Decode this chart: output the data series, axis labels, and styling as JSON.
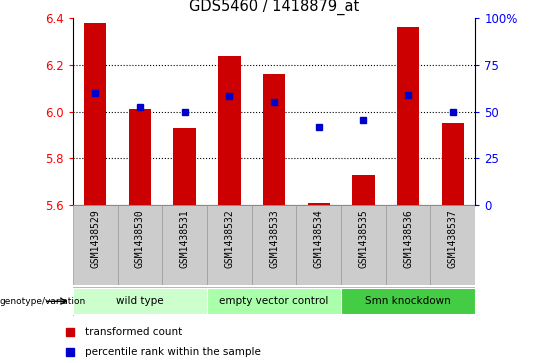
{
  "title": "GDS5460 / 1418879_at",
  "samples": [
    "GSM1438529",
    "GSM1438530",
    "GSM1438531",
    "GSM1438532",
    "GSM1438533",
    "GSM1438534",
    "GSM1438535",
    "GSM1438536",
    "GSM1438537"
  ],
  "red_values": [
    6.38,
    6.01,
    5.93,
    6.24,
    6.16,
    5.61,
    5.73,
    6.36,
    5.95
  ],
  "blue_values": [
    6.08,
    6.02,
    6.0,
    6.065,
    6.04,
    5.935,
    5.965,
    6.07,
    6.0
  ],
  "ymin": 5.6,
  "ymax": 6.4,
  "bar_bottom": 5.6,
  "bar_color": "#cc0000",
  "dot_color": "#0000cc",
  "groups": [
    {
      "label": "wild type",
      "start": 0,
      "end": 3,
      "color": "#ccffcc"
    },
    {
      "label": "empty vector control",
      "start": 3,
      "end": 6,
      "color": "#aaffaa"
    },
    {
      "label": "Smn knockdown",
      "start": 6,
      "end": 9,
      "color": "#44cc44"
    }
  ],
  "xlabel": "genotype/variation",
  "legend_items": [
    "transformed count",
    "percentile rank within the sample"
  ],
  "right_yticks": [
    0,
    25,
    50,
    75,
    100
  ],
  "right_ylabels": [
    "0",
    "25",
    "50",
    "75",
    "100%"
  ],
  "left_yticks": [
    5.6,
    5.8,
    6.0,
    6.2,
    6.4
  ],
  "dotted_lines": [
    5.8,
    6.0,
    6.2
  ],
  "bar_width": 0.5,
  "sample_bg_color": "#cccccc",
  "sample_border_color": "#999999"
}
